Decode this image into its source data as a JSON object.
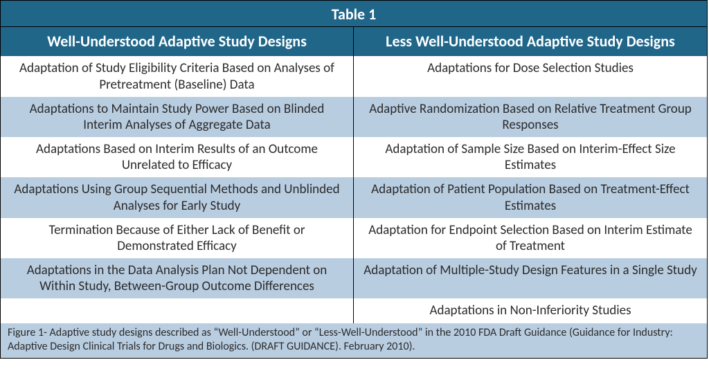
{
  "colors": {
    "header_bg": "#206689",
    "header_text": "#ffffff",
    "row_even_bg": "#ffffff",
    "row_odd_bg": "#b9cde1",
    "body_text": "#2b2b2b",
    "border": "#000000"
  },
  "table": {
    "title": "Table 1",
    "columns": [
      "Well-Understood Adaptive Study Designs",
      "Less Well-Understood Adaptive Study Designs"
    ],
    "rows": [
      [
        "Adaptation of Study Eligibility Criteria Based on Analyses of Pretreatment (Baseline) Data",
        "Adaptations for Dose Selection Studies"
      ],
      [
        "Adaptations to Maintain Study Power Based on Blinded Interim Analyses of Aggregate Data",
        "Adaptive Randomization Based on Relative Treatment Group Responses"
      ],
      [
        "Adaptations Based on Interim Results of an Outcome Unrelated to Efficacy",
        "Adaptation of Sample Size Based on Interim-Effect Size Estimates"
      ],
      [
        "Adaptations Using Group Sequential Methods and Unblinded Analyses for Early Study",
        "Adaptation of Patient Population Based on Treatment-Effect Estimates"
      ],
      [
        "Termination Because of Either Lack of Benefit or Demonstrated Efficacy",
        "Adaptation for Endpoint Selection Based on Interim Estimate of Treatment"
      ],
      [
        "Adaptations in the Data Analysis Plan Not Dependent on Within Study, Between-Group Outcome Differences",
        "Adaptation of Multiple-Study Design Features in a Single Study"
      ],
      [
        "",
        "Adaptations in Non-Inferiority Studies"
      ]
    ],
    "caption": "Figure 1- Adaptive study designs described as “Well-Understood” or “Less-Well-Understood” in the 2010 FDA Draft Guidance (Guidance for Industry: Adaptive Design Clinical Trials for Drugs and Biologics. (DRAFT GUIDANCE). February 2010)."
  }
}
